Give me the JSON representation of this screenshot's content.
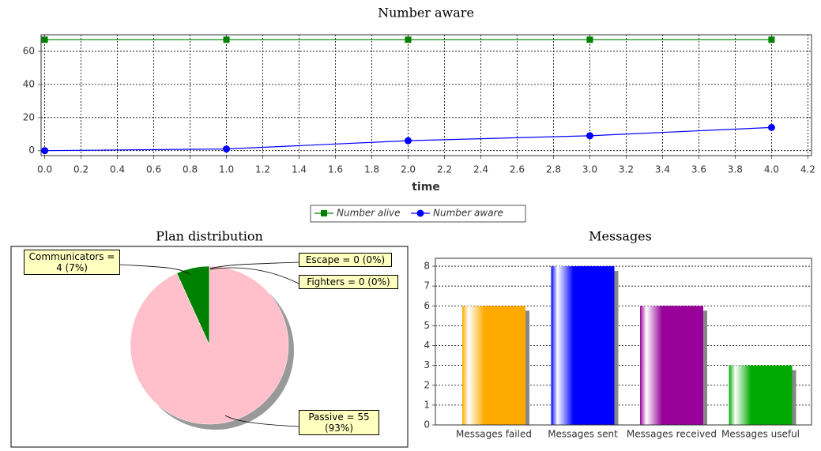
{
  "chart_data": [
    {
      "type": "line",
      "title": "Number aware",
      "x_label": "time",
      "x": [
        0,
        1,
        2,
        3,
        4
      ],
      "series": [
        {
          "name": "Number alive",
          "color": "#008000",
          "marker": "square",
          "values": [
            67,
            67,
            67,
            67,
            67
          ]
        },
        {
          "name": "Number aware",
          "color": "#0000ff",
          "marker": "circle",
          "values": [
            0,
            1,
            6,
            9,
            14
          ]
        }
      ],
      "xlim": [
        -0.02,
        4.22
      ],
      "xticks": [
        {
          "value": 0,
          "label": "0.0"
        },
        0.2,
        0.4,
        0.6,
        0.8,
        {
          "value": 1,
          "label": "1.0"
        },
        1.2,
        1.4,
        1.6,
        1.8,
        {
          "value": 2,
          "label": "2.0"
        },
        2.2,
        2.4,
        2.6,
        2.8,
        {
          "value": 3,
          "label": "3.0"
        },
        3.2,
        3.4,
        3.6,
        3.8,
        {
          "value": 4,
          "label": "4.0"
        },
        4.2
      ],
      "ylim": [
        -3,
        70
      ],
      "yticks": [
        0,
        20,
        40,
        60
      ],
      "grid": true
    },
    {
      "type": "pie",
      "title": "Plan distribution",
      "values": [
        4,
        0,
        0,
        55
      ],
      "value_labels": [
        "Communicators = 4 (7%)",
        "Escape = 0 (0%)",
        "Fighters = 0 (0%)",
        "Passive = 55 (93%)"
      ],
      "colors": [
        "#008000",
        "#ff0000",
        "#0000ff",
        "#ffc0cb"
      ]
    },
    {
      "type": "bar",
      "title": "Messages",
      "categories": [
        "Messages failed",
        "Messages sent",
        "Messages received",
        "Messages useful"
      ],
      "values": [
        6,
        8,
        6,
        3
      ],
      "colors": [
        "#ffaa00",
        "#0000ff",
        "#990099",
        "#00aa00"
      ],
      "ylim": [
        0,
        8.4
      ],
      "yticks": [
        0,
        1,
        2,
        3,
        4,
        5,
        6,
        7,
        8
      ],
      "grid": true
    }
  ]
}
